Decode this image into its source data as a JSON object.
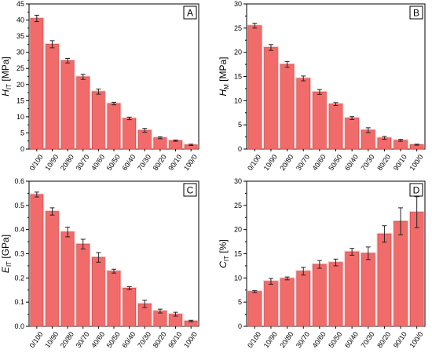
{
  "figure": {
    "categories": [
      "0/100",
      "10/90",
      "20/80",
      "30/70",
      "40/60",
      "50/50",
      "60/40",
      "70/30",
      "80/20",
      "90/10",
      "100/0"
    ],
    "bar_color": "#f26b6b",
    "bar_stroke": "#c44848",
    "shadow_color": "#f7a9a9"
  },
  "chart_data": [
    {
      "type": "bar",
      "panel": "A",
      "ylabel": "H",
      "ylabel_sub": "IT",
      "ylabel_unit": " [MPa]",
      "categories": [
        "0/100",
        "10/90",
        "20/80",
        "30/70",
        "40/60",
        "50/50",
        "60/40",
        "70/30",
        "80/20",
        "90/10",
        "100/0"
      ],
      "values": [
        40.5,
        32.5,
        27.4,
        22.4,
        17.8,
        14.1,
        9.5,
        5.8,
        3.5,
        2.6,
        1.3
      ],
      "errors": [
        1.0,
        1.1,
        0.7,
        0.8,
        0.8,
        0.4,
        0.4,
        0.6,
        0.3,
        0.2,
        0.2
      ],
      "ylim": [
        0,
        45
      ],
      "yticks": [
        "0",
        "5",
        "10",
        "15",
        "20",
        "25",
        "30",
        "35",
        "40",
        "45"
      ],
      "ytick_values": [
        0,
        5,
        10,
        15,
        20,
        25,
        30,
        35,
        40,
        45
      ],
      "legend": "none",
      "grid": false
    },
    {
      "type": "bar",
      "panel": "B",
      "ylabel": "H",
      "ylabel_sub": "M",
      "ylabel_unit": " [MPa]",
      "categories": [
        "0/100",
        "10/90",
        "20/80",
        "30/70",
        "40/60",
        "50/50",
        "60/40",
        "70/30",
        "80/20",
        "90/10",
        "100/0"
      ],
      "values": [
        25.5,
        21.0,
        17.5,
        14.6,
        11.8,
        9.3,
        6.4,
        3.9,
        2.3,
        1.8,
        0.9
      ],
      "errors": [
        0.5,
        0.6,
        0.6,
        0.5,
        0.5,
        0.3,
        0.3,
        0.5,
        0.3,
        0.2,
        0.1
      ],
      "ylim": [
        0,
        30
      ],
      "yticks": [
        "0",
        "5",
        "10",
        "15",
        "20",
        "25",
        "30"
      ],
      "ytick_values": [
        0,
        5,
        10,
        15,
        20,
        25,
        30
      ],
      "legend": "none",
      "grid": false
    },
    {
      "type": "bar",
      "panel": "C",
      "ylabel": "E",
      "ylabel_sub": "IT",
      "ylabel_unit": " [GPa]",
      "categories": [
        "0/100",
        "10/90",
        "20/80",
        "30/70",
        "40/60",
        "50/50",
        "60/40",
        "70/30",
        "80/20",
        "90/10",
        "100/0"
      ],
      "values": [
        0.545,
        0.475,
        0.39,
        0.34,
        0.285,
        0.228,
        0.158,
        0.093,
        0.063,
        0.05,
        0.022
      ],
      "errors": [
        0.01,
        0.015,
        0.02,
        0.02,
        0.02,
        0.008,
        0.006,
        0.015,
        0.008,
        0.008,
        0.003
      ],
      "ylim": [
        0,
        0.6
      ],
      "yticks": [
        "0.0",
        "0.1",
        "0.2",
        "0.3",
        "0.4",
        "0.5",
        "0.6"
      ],
      "ytick_values": [
        0,
        0.1,
        0.2,
        0.3,
        0.4,
        0.5,
        0.6
      ],
      "legend": "none",
      "grid": false
    },
    {
      "type": "bar",
      "panel": "D",
      "ylabel": "C",
      "ylabel_sub": "IT",
      "ylabel_unit": " [%]",
      "categories": [
        "0/100",
        "10/90",
        "20/80",
        "30/70",
        "40/60",
        "50/50",
        "60/40",
        "70/30",
        "80/20",
        "90/10",
        "100/0"
      ],
      "values": [
        7.2,
        9.3,
        9.9,
        11.4,
        12.8,
        13.2,
        15.4,
        15.1,
        19.1,
        21.7,
        23.6
      ],
      "errors": [
        0.2,
        0.6,
        0.3,
        0.8,
        0.8,
        0.7,
        0.7,
        1.3,
        1.7,
        2.8,
        3.2
      ],
      "ylim": [
        0,
        30
      ],
      "yticks": [
        "0",
        "5",
        "10",
        "15",
        "20",
        "25",
        "30"
      ],
      "ytick_values": [
        0,
        5,
        10,
        15,
        20,
        25,
        30
      ],
      "legend": "none",
      "grid": false
    }
  ]
}
